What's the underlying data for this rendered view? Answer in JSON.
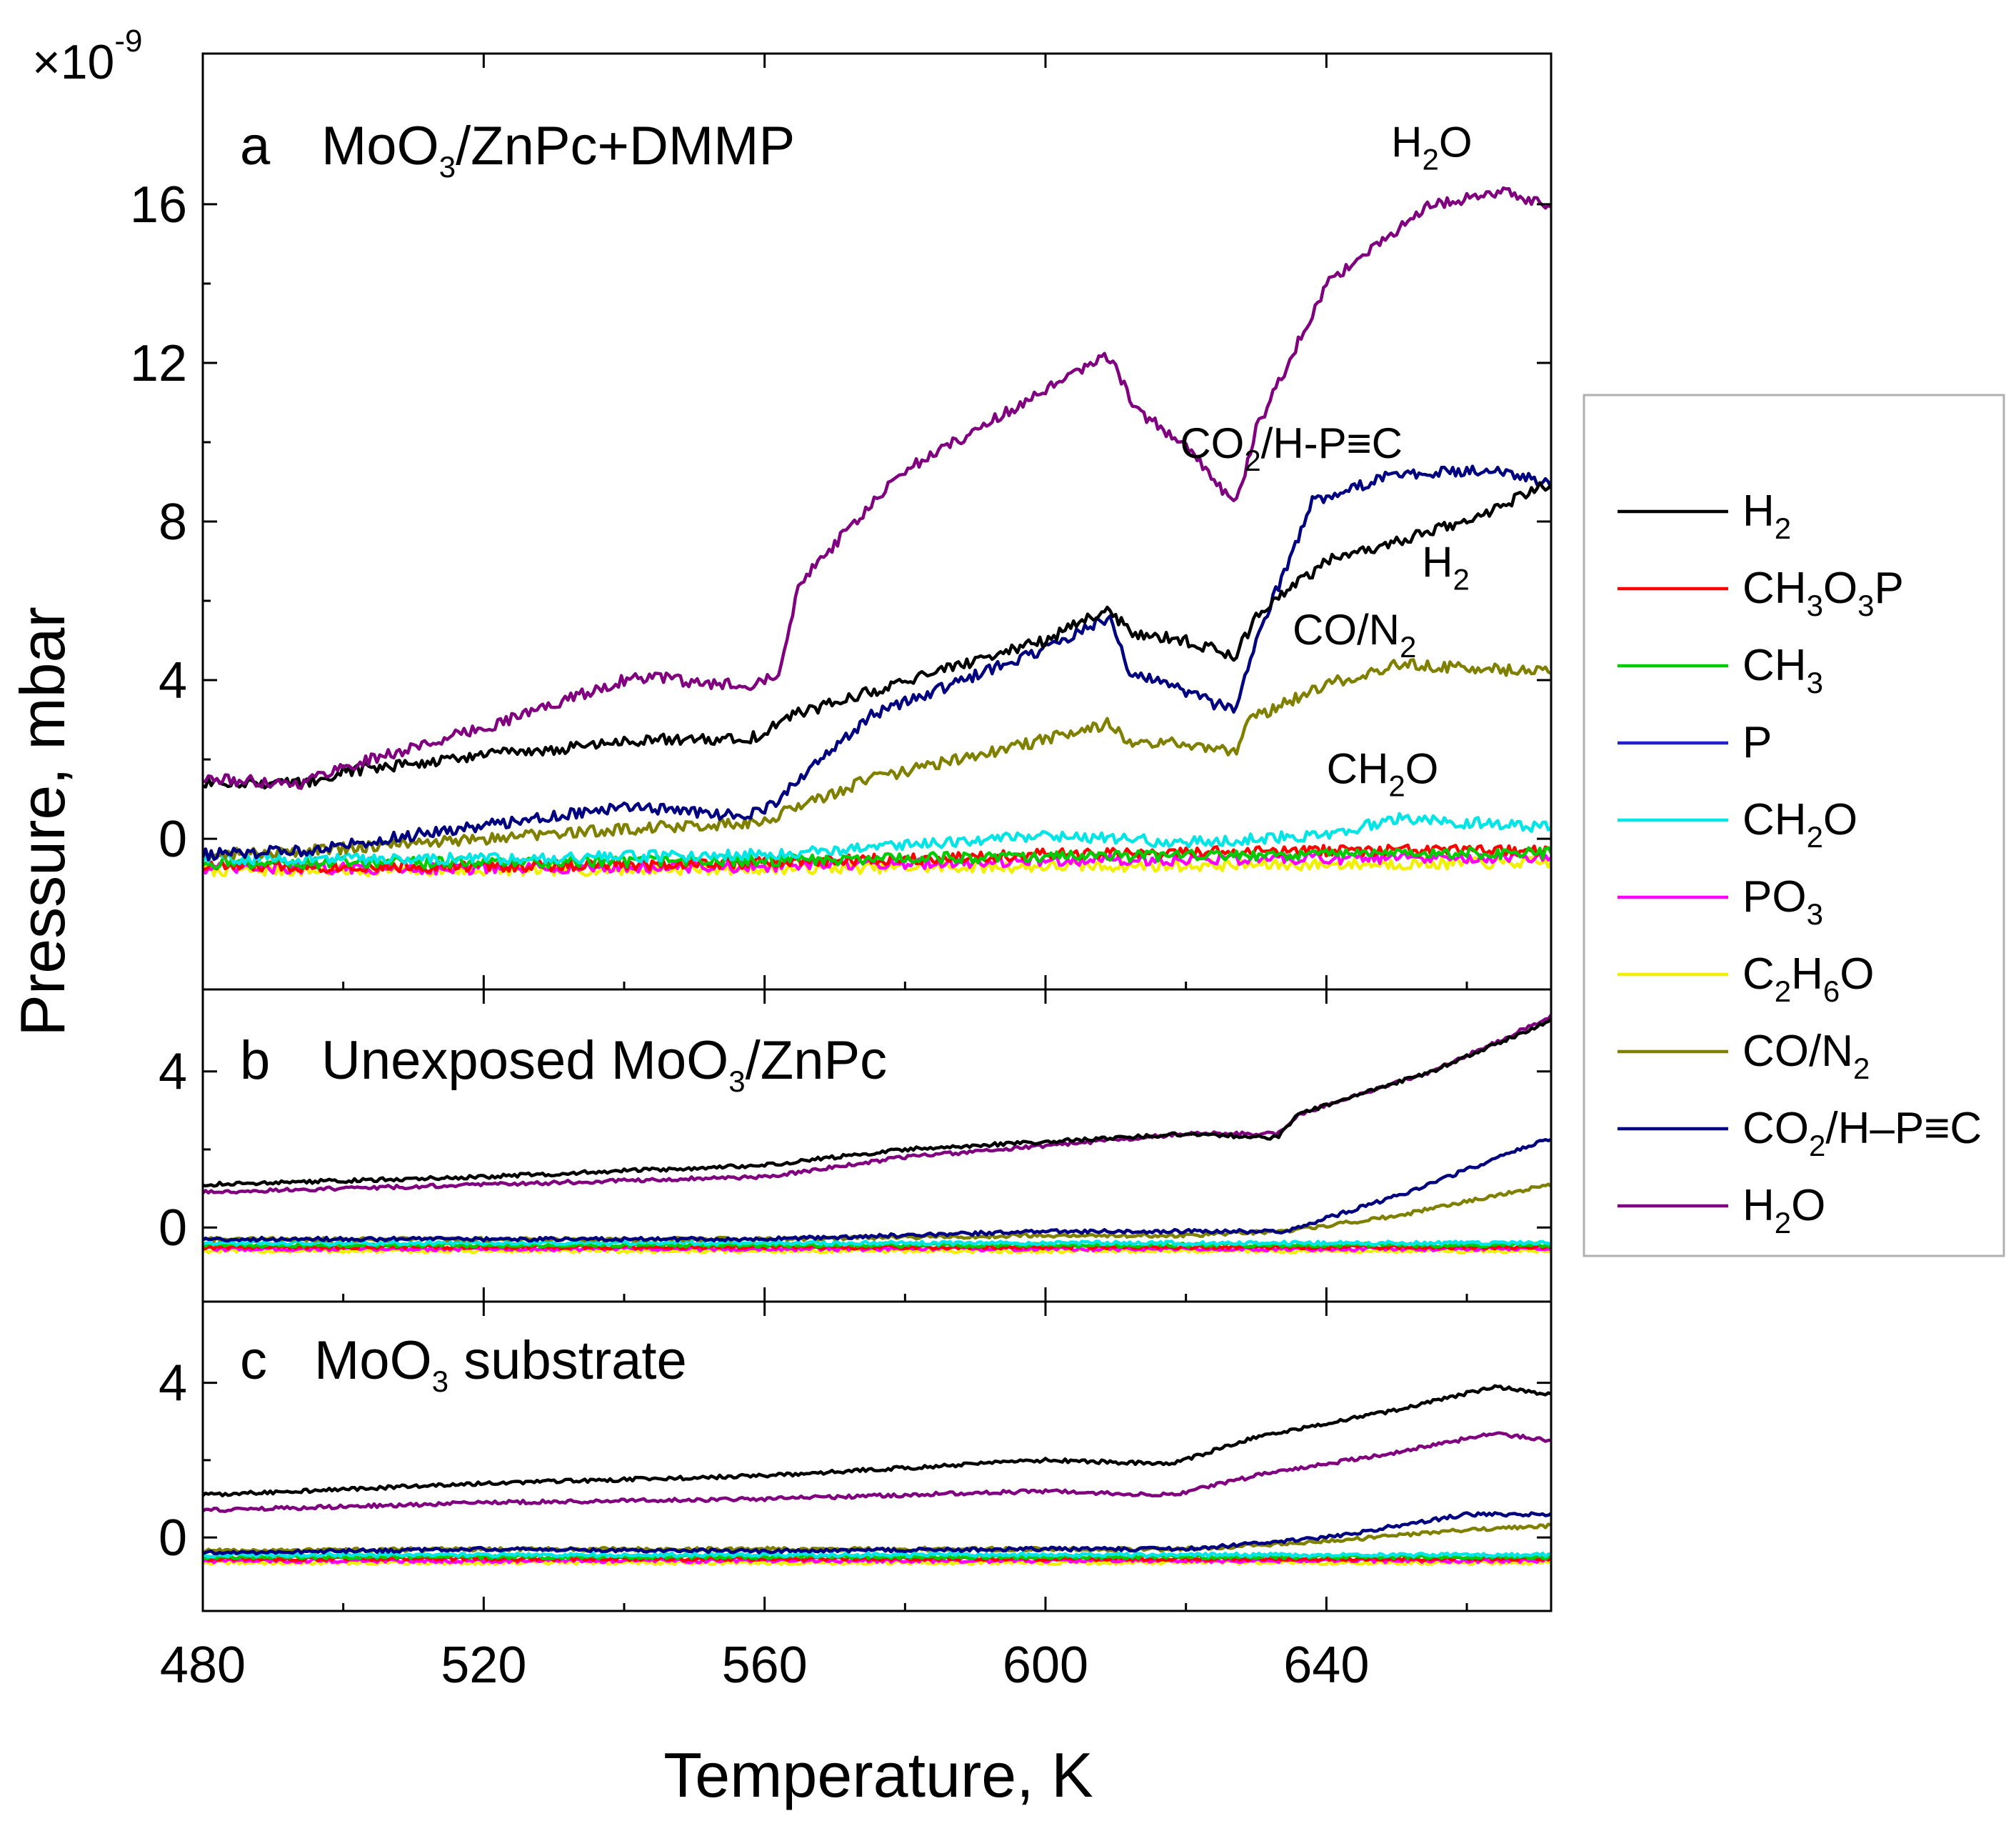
{
  "chart_data": {
    "type": "line",
    "multiplier_label": "×10",
    "multiplier_exponent": "-9",
    "xlabel": "Temperature, K",
    "ylabel": "Pressure, mbar",
    "xlim": [
      480,
      672
    ],
    "x_ticks": [
      480,
      520,
      560,
      600,
      640
    ],
    "legend": {
      "position": "right",
      "entries": [
        {
          "key": "H2",
          "parts": [
            [
              "H",
              ""
            ],
            [
              "2",
              "sub"
            ]
          ],
          "color": "#000000"
        },
        {
          "key": "CH3O3P",
          "parts": [
            [
              "CH",
              ""
            ],
            [
              "3",
              "sub"
            ],
            [
              "O",
              ""
            ],
            [
              "3",
              "sub"
            ],
            [
              "P",
              ""
            ]
          ],
          "color": "#ff0000"
        },
        {
          "key": "CH3",
          "parts": [
            [
              "CH",
              ""
            ],
            [
              "3",
              "sub"
            ]
          ],
          "color": "#00cc00"
        },
        {
          "key": "P",
          "parts": [
            [
              "P",
              ""
            ]
          ],
          "color": "#2020cc"
        },
        {
          "key": "CH2O",
          "parts": [
            [
              "CH",
              ""
            ],
            [
              "2",
              "sub"
            ],
            [
              "O",
              ""
            ]
          ],
          "color": "#00e5e5"
        },
        {
          "key": "PO3",
          "parts": [
            [
              "PO",
              ""
            ],
            [
              "3",
              "sub"
            ]
          ],
          "color": "#ff00ff"
        },
        {
          "key": "C2H6O",
          "parts": [
            [
              "C",
              ""
            ],
            [
              "2",
              "sub"
            ],
            [
              "H",
              ""
            ],
            [
              "6",
              "sub"
            ],
            [
              "O",
              ""
            ]
          ],
          "color": "#f0f000"
        },
        {
          "key": "CO/N2",
          "parts": [
            [
              "CO/N",
              ""
            ],
            [
              "2",
              "sub"
            ]
          ],
          "color": "#808000"
        },
        {
          "key": "CO2/H-P≡C",
          "parts": [
            [
              "CO",
              ""
            ],
            [
              "2",
              "sub"
            ],
            [
              "/H–P≡C",
              ""
            ]
          ],
          "color": "#000080"
        },
        {
          "key": "H2O",
          "parts": [
            [
              "H",
              ""
            ],
            [
              "2",
              "sub"
            ],
            [
              "O",
              ""
            ]
          ],
          "color": "#800080"
        }
      ]
    },
    "panels": [
      {
        "id": "a",
        "label_letter": "a",
        "label_parts": [
          [
            "MoO",
            ""
          ],
          [
            "3",
            "sub"
          ],
          [
            "/ZnPc+DMMP",
            ""
          ]
        ],
        "ylim": [
          -3.8,
          19.8
        ],
        "y_ticks": [
          0,
          4,
          8,
          12,
          16
        ],
        "annotations": [
          {
            "parts": [
              [
                "H",
                ""
              ],
              [
                "2",
                "sub"
              ],
              [
                "O",
                ""
              ]
            ],
            "x": 655,
            "y": 17.2
          },
          {
            "parts": [
              [
                "CO",
                ""
              ],
              [
                "2",
                "sub"
              ],
              [
                "/H-P≡C",
                ""
              ]
            ],
            "x": 635,
            "y": 9.6
          },
          {
            "parts": [
              [
                "H",
                ""
              ],
              [
                "2",
                "sub"
              ]
            ],
            "x": 657,
            "y": 6.6
          },
          {
            "parts": [
              [
                "CO/N",
                ""
              ],
              [
                "2",
                "sub"
              ]
            ],
            "x": 644,
            "y": 4.9
          },
          {
            "parts": [
              [
                "CH",
                ""
              ],
              [
                "2",
                "sub"
              ],
              [
                "O",
                ""
              ]
            ],
            "x": 648,
            "y": 1.4
          }
        ],
        "series": [
          {
            "key": "H2O",
            "x": [
              480,
              494,
              498,
              520,
              540,
              545,
              550,
              558,
              562,
              565,
              580,
              600,
              609,
              613,
              620,
              627,
              630,
              640,
              655,
              665,
              672
            ],
            "y": [
              1.5,
              1.4,
              1.7,
              2.8,
              4.0,
              4.1,
              3.9,
              3.9,
              4.2,
              6.5,
              9.3,
              11.3,
              12.2,
              10.8,
              9.9,
              8.4,
              10.3,
              14.0,
              16.0,
              16.3,
              16.0
            ]
          },
          {
            "key": "H2",
            "x": [
              480,
              494,
              500,
              520,
              545,
              555,
              560,
              562,
              575,
              600,
              609,
              612,
              620,
              627,
              630,
              640,
              660,
              672
            ],
            "y": [
              1.4,
              1.4,
              1.7,
              2.1,
              2.5,
              2.5,
              2.6,
              3.0,
              3.7,
              5.0,
              5.8,
              5.2,
              5.0,
              4.6,
              5.6,
              7.0,
              8.0,
              9.0
            ]
          },
          {
            "key": "CO2/H-P≡C",
            "x": [
              480,
              494,
              510,
              535,
              542,
              555,
              560,
              562,
              575,
              600,
              609,
              612,
              620,
              627,
              630,
              638,
              650,
              665,
              672
            ],
            "y": [
              -0.4,
              -0.3,
              0.1,
              0.7,
              0.8,
              0.6,
              0.7,
              1.0,
              3.1,
              4.8,
              5.6,
              4.2,
              3.7,
              3.2,
              5.0,
              8.5,
              9.2,
              9.3,
              8.9
            ]
          },
          {
            "key": "CO/N2",
            "x": [
              480,
              495,
              520,
              545,
              560,
              563,
              575,
              600,
              609,
              612,
              620,
              627,
              629,
              640,
              650,
              672
            ],
            "y": [
              -0.4,
              -0.3,
              0.0,
              0.3,
              0.4,
              0.7,
              1.5,
              2.5,
              2.9,
              2.4,
              2.4,
              2.2,
              3.0,
              3.9,
              4.4,
              4.2
            ]
          },
          {
            "key": "CH2O",
            "x": [
              480,
              520,
              560,
              600,
              620,
              640,
              650,
              672
            ],
            "y": [
              -0.5,
              -0.5,
              -0.4,
              0.1,
              -0.1,
              0.1,
              0.5,
              0.3
            ]
          },
          {
            "key": "CH3",
            "x": [
              480,
              520,
              560,
              600,
              640,
              672
            ],
            "y": [
              -0.6,
              -0.6,
              -0.55,
              -0.45,
              -0.4,
              -0.35
            ]
          },
          {
            "key": "CH3O3P",
            "x": [
              480,
              520,
              560,
              600,
              640,
              672
            ],
            "y": [
              -0.7,
              -0.7,
              -0.6,
              -0.4,
              -0.3,
              -0.3
            ]
          },
          {
            "key": "PO3",
            "x": [
              480,
              520,
              560,
              600,
              640,
              672
            ],
            "y": [
              -0.75,
              -0.75,
              -0.7,
              -0.55,
              -0.5,
              -0.5
            ]
          },
          {
            "key": "C2H6O",
            "x": [
              480,
              520,
              560,
              600,
              640,
              672
            ],
            "y": [
              -0.8,
              -0.8,
              -0.75,
              -0.7,
              -0.65,
              -0.6
            ]
          }
        ]
      },
      {
        "id": "b",
        "label_letter": "b",
        "label_parts": [
          [
            "Unexposed MoO",
            ""
          ],
          [
            "3",
            "sub"
          ],
          [
            "/ZnPc",
            ""
          ]
        ],
        "ylim": [
          -1.9,
          6.1
        ],
        "y_ticks": [
          0,
          4
        ],
        "annotations": [],
        "series": [
          {
            "key": "H2",
            "x": [
              480,
              520,
              560,
              580,
              600,
              620,
              633,
              636,
              655,
              672
            ],
            "y": [
              1.1,
              1.3,
              1.6,
              2.0,
              2.2,
              2.4,
              2.3,
              2.9,
              4.0,
              5.3
            ]
          },
          {
            "key": "H2O",
            "x": [
              480,
              520,
              560,
              580,
              600,
              620,
              633,
              636,
              655,
              672
            ],
            "y": [
              0.9,
              1.1,
              1.3,
              1.8,
              2.1,
              2.4,
              2.4,
              2.9,
              4.0,
              5.4
            ]
          },
          {
            "key": "CO2/H-P≡C",
            "x": [
              480,
              520,
              560,
              600,
              620,
              634,
              650,
              672
            ],
            "y": [
              -0.3,
              -0.3,
              -0.3,
              -0.1,
              -0.1,
              -0.1,
              0.8,
              2.3
            ]
          },
          {
            "key": "CO/N2",
            "x": [
              480,
              520,
              560,
              600,
              620,
              634,
              650,
              672
            ],
            "y": [
              -0.3,
              -0.3,
              -0.3,
              -0.2,
              -0.2,
              -0.1,
              0.3,
              1.1
            ]
          },
          {
            "key": "CH2O",
            "x": [
              480,
              560,
              672
            ],
            "y": [
              -0.4,
              -0.4,
              -0.4
            ]
          },
          {
            "key": "CH3",
            "x": [
              480,
              560,
              672
            ],
            "y": [
              -0.45,
              -0.45,
              -0.45
            ]
          },
          {
            "key": "CH3O3P",
            "x": [
              480,
              560,
              672
            ],
            "y": [
              -0.5,
              -0.5,
              -0.5
            ]
          },
          {
            "key": "PO3",
            "x": [
              480,
              560,
              672
            ],
            "y": [
              -0.55,
              -0.55,
              -0.55
            ]
          },
          {
            "key": "C2H6O",
            "x": [
              480,
              560,
              672
            ],
            "y": [
              -0.6,
              -0.6,
              -0.6
            ]
          }
        ]
      },
      {
        "id": "c",
        "label_letter": "c",
        "label_parts": [
          [
            "MoO",
            ""
          ],
          [
            "3",
            "sub"
          ],
          [
            " substrate",
            ""
          ]
        ],
        "ylim": [
          -1.9,
          6.1
        ],
        "y_ticks": [
          0,
          4
        ],
        "annotations": [],
        "series": [
          {
            "key": "H2",
            "x": [
              480,
              520,
              560,
              600,
              618,
              630,
              650,
              664,
              672
            ],
            "y": [
              1.1,
              1.4,
              1.6,
              2.0,
              1.9,
              2.6,
              3.3,
              3.9,
              3.7
            ]
          },
          {
            "key": "H2O",
            "x": [
              480,
              520,
              560,
              600,
              618,
              630,
              650,
              664,
              672
            ],
            "y": [
              0.7,
              0.9,
              1.0,
              1.2,
              1.1,
              1.6,
              2.2,
              2.7,
              2.5
            ]
          },
          {
            "key": "CO2/H-P≡C",
            "x": [
              480,
              520,
              560,
              600,
              620,
              640,
              660,
              672
            ],
            "y": [
              -0.4,
              -0.3,
              -0.35,
              -0.3,
              -0.3,
              0.0,
              0.6,
              0.6
            ]
          },
          {
            "key": "CO/N2",
            "x": [
              480,
              520,
              560,
              600,
              620,
              640,
              660,
              672
            ],
            "y": [
              -0.35,
              -0.3,
              -0.3,
              -0.3,
              -0.3,
              -0.1,
              0.2,
              0.3
            ]
          },
          {
            "key": "CH2O",
            "x": [
              480,
              560,
              672
            ],
            "y": [
              -0.45,
              -0.45,
              -0.45
            ]
          },
          {
            "key": "CH3",
            "x": [
              480,
              560,
              672
            ],
            "y": [
              -0.5,
              -0.5,
              -0.5
            ]
          },
          {
            "key": "CH3O3P",
            "x": [
              480,
              560,
              672
            ],
            "y": [
              -0.55,
              -0.55,
              -0.55
            ]
          },
          {
            "key": "PO3",
            "x": [
              480,
              560,
              672
            ],
            "y": [
              -0.6,
              -0.6,
              -0.6
            ]
          },
          {
            "key": "C2H6O",
            "x": [
              480,
              560,
              672
            ],
            "y": [
              -0.65,
              -0.65,
              -0.65
            ]
          }
        ]
      }
    ]
  }
}
